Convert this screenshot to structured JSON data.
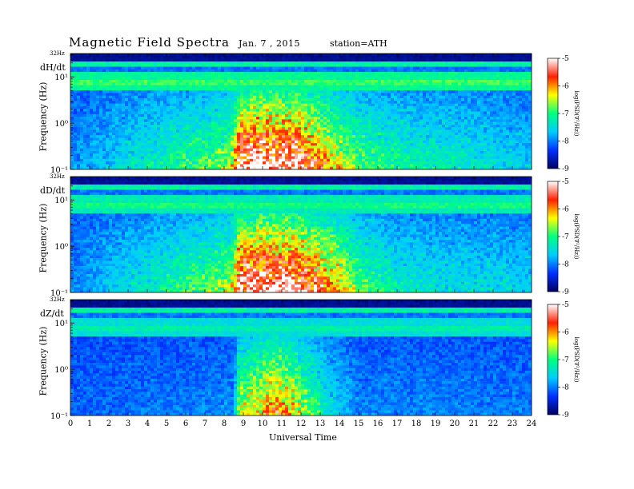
{
  "header": {
    "title": "Magnetic  Field  Spectra",
    "date": "Jan.  7  , 2015",
    "station": "station=ATH"
  },
  "axes_text": {
    "ylabel": "Frequency  (Hz)",
    "xlabel": "Universal  Time",
    "colorbar_label": "log(PSD(∇²/Hz))",
    "top_freq_label": "32Hz"
  },
  "chart_data": {
    "type": "heatmap",
    "x_range_hours": [
      0,
      24
    ],
    "x_ticks": [
      "0",
      "1",
      "2",
      "3",
      "4",
      "5",
      "6",
      "7",
      "8",
      "9",
      "10",
      "11",
      "12",
      "13",
      "14",
      "15",
      "16",
      "17",
      "18",
      "19",
      "20",
      "21",
      "22",
      "23",
      "24"
    ],
    "y_scale": "log",
    "y_ticks": [
      "10¹",
      "10⁰",
      "10⁻¹"
    ],
    "y_tick_values": [
      10,
      1,
      0.1
    ],
    "colorbar": {
      "ticks": [
        "-5",
        "-6",
        "-7",
        "-8",
        "-9"
      ],
      "range": [
        -9,
        -5
      ],
      "colors": [
        "#000060",
        "#0030ff",
        "#00ccff",
        "#00ff80",
        "#ffff00",
        "#ff2000",
        "#ffffff"
      ]
    },
    "panels": [
      {
        "component": "dH/dt",
        "activity": [
          [
            0,
            0.1
          ],
          [
            8.2,
            0.5
          ],
          [
            8.5,
            0.6
          ],
          [
            8.8,
            0.95
          ],
          [
            9.5,
            1.0
          ],
          [
            10.5,
            1.0
          ],
          [
            11.5,
            1.0
          ],
          [
            12.5,
            0.85
          ],
          [
            13.5,
            0.65
          ],
          [
            15,
            0.45
          ],
          [
            17,
            0.35
          ],
          [
            20,
            0.3
          ],
          [
            22,
            0.25
          ],
          [
            24,
            0.2
          ]
        ],
        "upper_band_strength": 0.85
      },
      {
        "component": "dD/dt",
        "activity": [
          [
            0,
            0.1
          ],
          [
            8.2,
            0.5
          ],
          [
            8.5,
            0.6
          ],
          [
            8.8,
            0.95
          ],
          [
            9.5,
            1.0
          ],
          [
            10.5,
            1.0
          ],
          [
            11.5,
            1.0
          ],
          [
            12.5,
            0.85
          ],
          [
            13.5,
            0.75
          ],
          [
            15,
            0.45
          ],
          [
            17,
            0.3
          ],
          [
            20,
            0.25
          ],
          [
            22,
            0.25
          ],
          [
            24,
            0.2
          ]
        ],
        "upper_band_strength": 0.7
      },
      {
        "component": "dZ/dt",
        "activity": [
          [
            0,
            0.05
          ],
          [
            8.5,
            0.1
          ],
          [
            8.8,
            0.55
          ],
          [
            10,
            0.65
          ],
          [
            10.5,
            0.75
          ],
          [
            11.5,
            0.65
          ],
          [
            12.5,
            0.45
          ],
          [
            13.5,
            0.25
          ],
          [
            15,
            0.1
          ],
          [
            24,
            0.08
          ]
        ],
        "upper_band_strength": 0.5
      }
    ]
  }
}
